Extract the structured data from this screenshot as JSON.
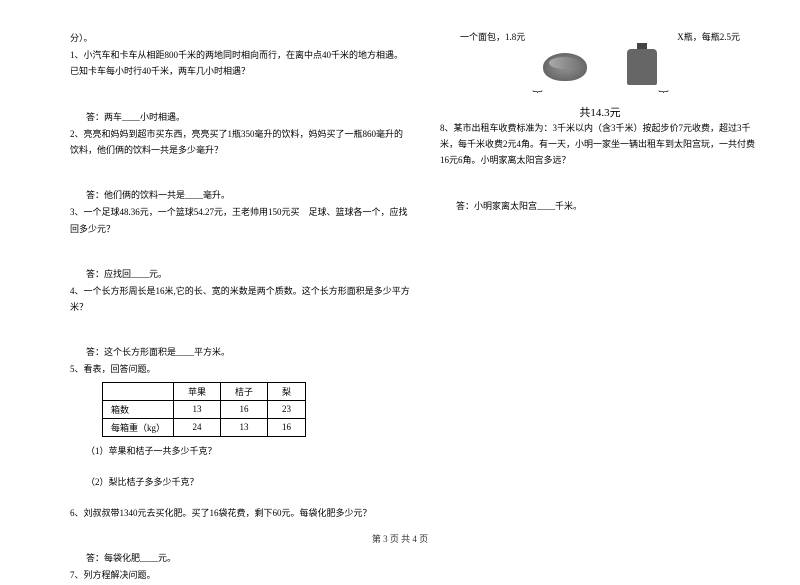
{
  "left": {
    "title_suffix": "分）。",
    "q1": "1、小汽车和卡车从相距800千米的两地同时相向而行，在离中点40千米的地方相遇。已知卡车每小时行40千米，两车几小时相遇？",
    "a1": "答：两车____小时相遇。",
    "q2": "2、亮亮和妈妈到超市买东西，亮亮买了1瓶350毫升的饮料，妈妈买了一瓶860毫升的饮料，他们俩的饮料一共是多少毫升？",
    "a2": "答：他们俩的饮料一共是____毫升。",
    "q3": "3、一个足球48.36元，一个篮球54.27元，王老帅用150元买　足球、篮球各一个，应找回多少元？",
    "a3": "答：应找回____元。",
    "q4": "4、一个长方形周长是16米,它的长、宽的米数是两个质数。这个长方形面积是多少平方米？",
    "a4": "答：这个长方形面积是____平方米。",
    "q5": "5、看表，回答问题。",
    "table": {
      "headers": [
        "",
        "苹果",
        "桔子",
        "梨"
      ],
      "row1": [
        "箱数",
        "13",
        "16",
        "23"
      ],
      "row2": [
        "每箱重（kg）",
        "24",
        "13",
        "16"
      ]
    },
    "q5_1": "（1）苹果和桔子一共多少千克？",
    "q5_2": "（2）梨比桔子多多少千克？",
    "q6": "6、刘叔叔带1340元去买化肥。买了16袋花费，剩下60元。每袋化肥多少元？",
    "a6": "答：每袋化肥____元。",
    "q7": "7、列方程解决问题。"
  },
  "right": {
    "bread_label": "一个面包，1.8元",
    "bottle_label": "X瓶，每瓶2.5元",
    "total": "共14.3元",
    "q8": "8、某市出租车收费标准为：3千米以内（含3千米）按起步价7元收费，超过3千米，每千米收费2元4角。有一天，小明一家坐一辆出租车到太阳宫玩，一共付费16元6角。小明家离太阳宫多远？",
    "a8": "答：小明家离太阳宫____千米。"
  },
  "footer": "第 3 页 共 4 页"
}
